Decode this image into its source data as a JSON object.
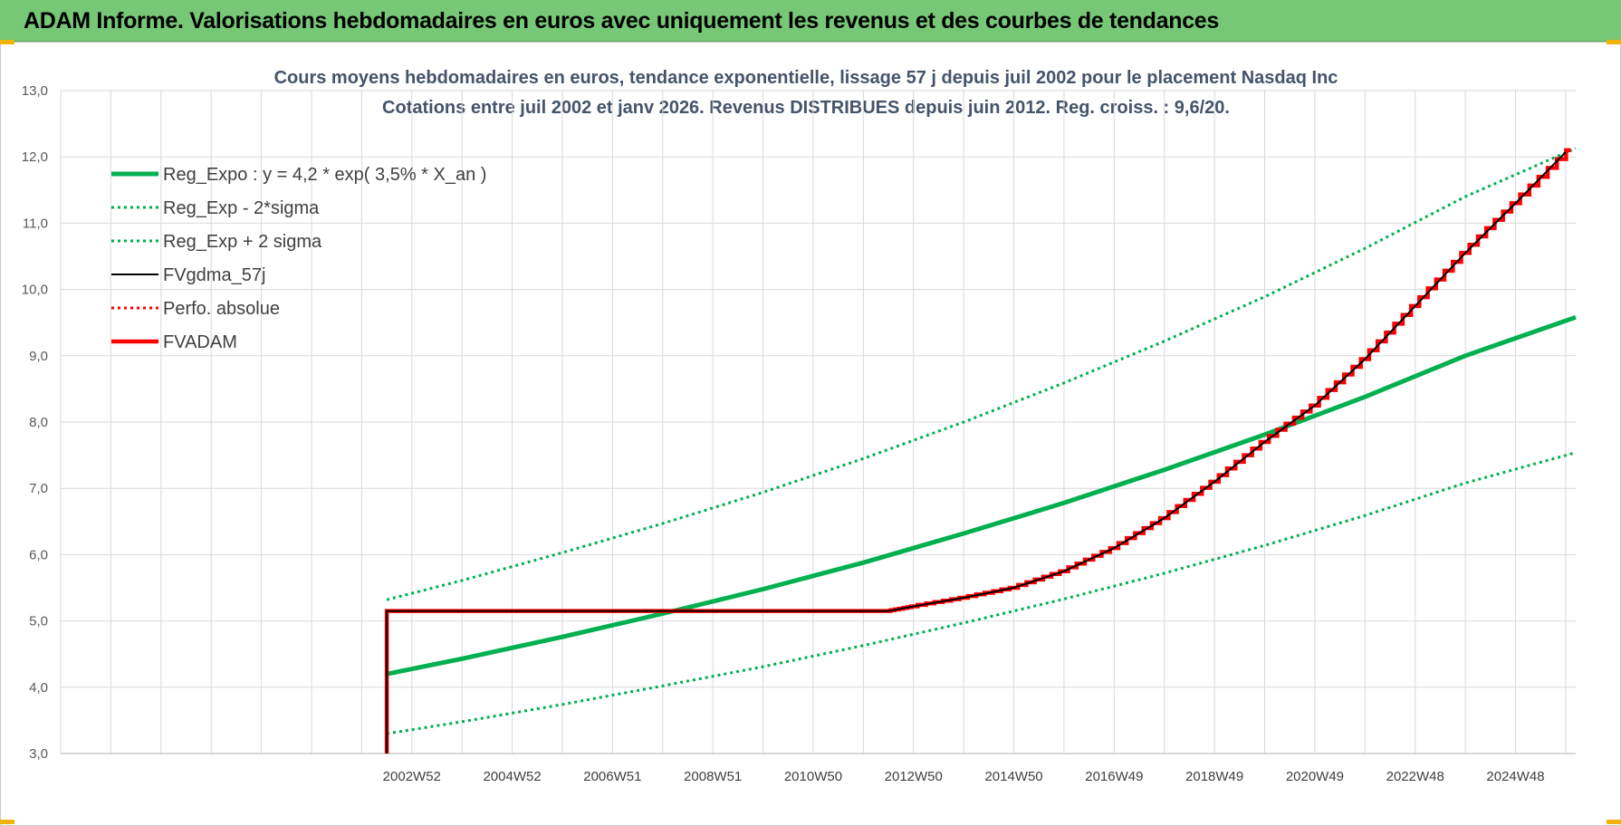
{
  "banner": {
    "title": "ADAM Informe. Valorisations hebdomadaires en euros avec uniquement les revenus et des courbes de tendances",
    "background": "#76c776"
  },
  "chart_data": {
    "type": "line",
    "title_line1": "Cours moyens hebdomadaires en euros, tendance exponentielle, lissage 57 j depuis juil 2002 pour le placement Nasdaq Inc",
    "title_line2": "Cotations entre juil 2002 et janv 2026. Revenus DISTRIBUES depuis juin 2012. Reg. croiss. : 9,6/20.",
    "xlabel": "",
    "ylabel": "",
    "ylim": [
      3.0,
      13.0
    ],
    "y_ticks": [
      "3,0",
      "4,0",
      "5,0",
      "6,0",
      "7,0",
      "8,0",
      "9,0",
      "10,0",
      "11,0",
      "12,0",
      "13,0"
    ],
    "x_ticks": [
      {
        "label": "2002W52",
        "year": 2003.0
      },
      {
        "label": "2004W52",
        "year": 2005.0
      },
      {
        "label": "2006W51",
        "year": 2007.0
      },
      {
        "label": "2008W51",
        "year": 2009.0
      },
      {
        "label": "2010W50",
        "year": 2011.0
      },
      {
        "label": "2012W50",
        "year": 2013.0
      },
      {
        "label": "2014W50",
        "year": 2015.0
      },
      {
        "label": "2016W49",
        "year": 2017.0
      },
      {
        "label": "2018W49",
        "year": 2019.0
      },
      {
        "label": "2020W49",
        "year": 2021.0
      },
      {
        "label": "2022W48",
        "year": 2023.0
      },
      {
        "label": "2024W48",
        "year": 2025.0
      }
    ],
    "x_range_years": [
      1996.0,
      2026.2
    ],
    "grid": true,
    "legend_position": "top-left",
    "series": [
      {
        "name": "Reg_Expo : y = 4,2 * exp( 3,5% *  X_an )",
        "color": "#00b050",
        "style": "solid-thick",
        "x": [
          2002.5,
          2004,
          2006,
          2008,
          2010,
          2012,
          2014,
          2016,
          2018,
          2020,
          2022,
          2024,
          2026.2
        ],
        "y": [
          4.2,
          4.43,
          4.76,
          5.11,
          5.48,
          5.88,
          6.32,
          6.78,
          7.28,
          7.81,
          8.38,
          9.0,
          9.58
        ]
      },
      {
        "name": "Reg_Exp - 2*sigma",
        "color": "#00b050",
        "style": "dotted",
        "x": [
          2002.5,
          2004,
          2006,
          2008,
          2010,
          2012,
          2014,
          2016,
          2018,
          2020,
          2022,
          2024,
          2026.2
        ],
        "y": [
          3.3,
          3.48,
          3.74,
          4.02,
          4.31,
          4.63,
          4.97,
          5.33,
          5.72,
          6.14,
          6.59,
          7.08,
          7.54
        ]
      },
      {
        "name": "Reg_Exp + 2 sigma",
        "color": "#00b050",
        "style": "dotted",
        "x": [
          2002.5,
          2004,
          2006,
          2008,
          2010,
          2012,
          2014,
          2016,
          2018,
          2020,
          2022,
          2024,
          2026.2
        ],
        "y": [
          5.32,
          5.61,
          6.03,
          6.47,
          6.94,
          7.45,
          8.0,
          8.59,
          9.22,
          9.89,
          10.62,
          11.4,
          12.13
        ]
      },
      {
        "name": "FVgdma_57j",
        "color": "#000000",
        "style": "solid",
        "x": [
          2002.5,
          2002.5,
          2012.5,
          2013,
          2014,
          2015,
          2016,
          2017,
          2018,
          2019,
          2020,
          2021,
          2022,
          2023,
          2024,
          2025,
          2026.0
        ],
        "y": [
          3.0,
          5.15,
          5.15,
          5.22,
          5.35,
          5.5,
          5.75,
          6.1,
          6.55,
          7.1,
          7.7,
          8.25,
          8.95,
          9.75,
          10.55,
          11.3,
          12.07
        ]
      },
      {
        "name": "Perfo. absolue",
        "color": "#ff0000",
        "style": "dotted",
        "x": [],
        "y": []
      },
      {
        "name": "FVADAM",
        "color": "#ff0000",
        "style": "solid-thick-step",
        "x": [
          2002.5,
          2002.5,
          2012.5,
          2013,
          2014,
          2015,
          2016,
          2017,
          2018,
          2019,
          2020,
          2021,
          2022,
          2023,
          2024,
          2025,
          2026.1
        ],
        "y": [
          3.0,
          5.15,
          5.15,
          5.22,
          5.35,
          5.5,
          5.75,
          6.1,
          6.55,
          7.1,
          7.7,
          8.25,
          8.95,
          9.75,
          10.55,
          11.3,
          12.1
        ]
      }
    ]
  }
}
